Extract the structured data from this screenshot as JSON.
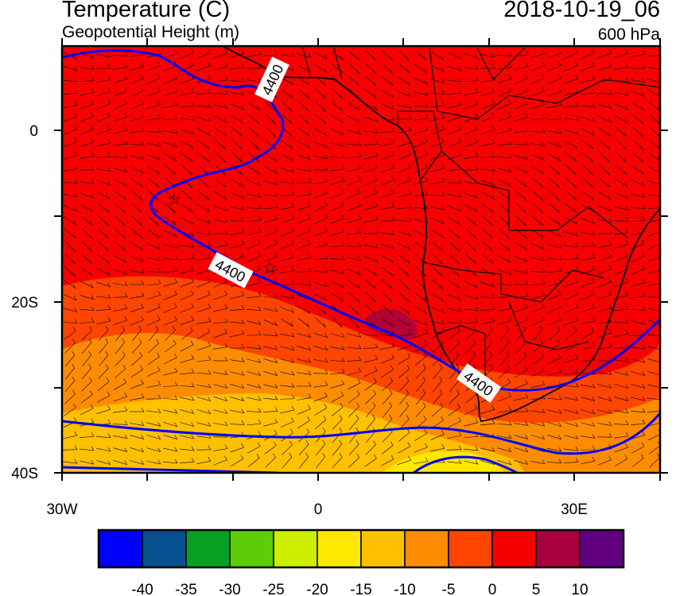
{
  "header": {
    "title": "Temperature (C)",
    "subtitle": "Geopotential Height (m)",
    "datetime": "2018-10-19_06",
    "level": "600 hPa"
  },
  "map": {
    "lon_range": [
      -30,
      40
    ],
    "lat_range": [
      -40,
      10
    ],
    "lat_ticks": [
      "0",
      "20S",
      "40S"
    ],
    "lon_ticks": [
      "30W",
      "0",
      "30E"
    ],
    "contour_labels": [
      "4400",
      "4400",
      "4400"
    ],
    "contour_color": "#0000ff",
    "markers": "star-icon"
  },
  "colorbar": {
    "colors": [
      "#0000ff",
      "#05508f",
      "#07a025",
      "#5ccd08",
      "#ccee00",
      "#ffe800",
      "#ffc000",
      "#ff8c00",
      "#ff4500",
      "#f80000",
      "#a8003f",
      "#600080"
    ],
    "labels": [
      "-40",
      "-35",
      "-30",
      "-25",
      "-20",
      "-15",
      "-10",
      "-5",
      "0",
      "5",
      "10"
    ]
  }
}
